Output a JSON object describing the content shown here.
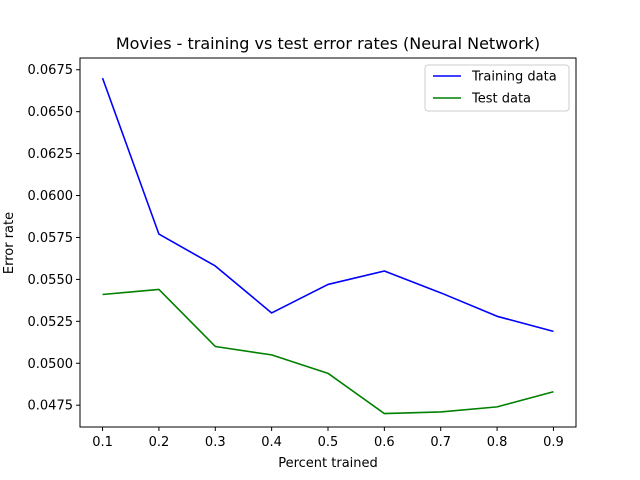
{
  "chart_data": {
    "type": "line",
    "title": "Movies - training vs test error rates (Neural Network)",
    "xlabel": "Percent trained",
    "ylabel": "Error rate",
    "x": [
      0.1,
      0.2,
      0.3,
      0.4,
      0.5,
      0.6,
      0.7,
      0.8,
      0.9
    ],
    "xticks": [
      "0.1",
      "0.2",
      "0.3",
      "0.4",
      "0.5",
      "0.6",
      "0.7",
      "0.8",
      "0.9"
    ],
    "yticks": [
      "0.0475",
      "0.0500",
      "0.0525",
      "0.0550",
      "0.0575",
      "0.0600",
      "0.0625",
      "0.0650",
      "0.0675"
    ],
    "xlim": [
      0.06,
      0.94
    ],
    "ylim": [
      0.0462,
      0.0682
    ],
    "grid": false,
    "legend_position": "top-right",
    "series": [
      {
        "name": "Training data",
        "color": "#0000ff",
        "values": [
          0.067,
          0.0577,
          0.0558,
          0.053,
          0.0547,
          0.0555,
          0.0542,
          0.0528,
          0.0519
        ]
      },
      {
        "name": "Test data",
        "color": "#008000",
        "values": [
          0.0541,
          0.0544,
          0.051,
          0.0505,
          0.0494,
          0.047,
          0.0471,
          0.0474,
          0.0483
        ]
      }
    ]
  }
}
